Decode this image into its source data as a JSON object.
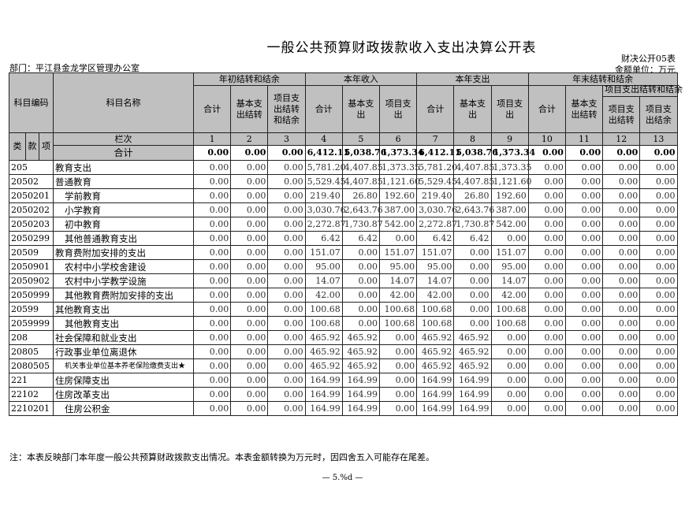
{
  "title": "一般公共预算财政拨款收入支出决算公开表",
  "form_no": "财决公开05表",
  "unit": "金额单位：万元",
  "department": "部门：平江县金龙学区管理办公室",
  "header": {
    "code": "科目编码",
    "name": "科目名称",
    "groups": [
      "年初结转和结余",
      "本年收入",
      "本年支出",
      "年末结转和结余"
    ],
    "sub": [
      "合计",
      "基本支出结转",
      "项目支出结转和结余",
      "合计",
      "基本支出",
      "项目支出",
      "合计",
      "基本支出",
      "项目支出",
      "合计",
      "基本支出结转",
      "项目支出结转和结余",
      "项目支出结转",
      "项目支出结余"
    ],
    "lei": "类",
    "kuan": "款",
    "xiang": "项",
    "lanci": "栏次",
    "col_nums": [
      "1",
      "2",
      "3",
      "4",
      "5",
      "6",
      "7",
      "8",
      "9",
      "10",
      "11",
      "12",
      "13"
    ],
    "total_label": "合计"
  },
  "totals": [
    "0.00",
    "0.00",
    "0.00",
    "6,412.11",
    "5,038.76",
    "1,373.34",
    "6,412.11",
    "5,038.76",
    "1,373.34",
    "0.00",
    "0.00",
    "0.00",
    "0.00"
  ],
  "rows": [
    {
      "code": "205",
      "name": "教育支出",
      "level": 1,
      "values": [
        "0.00",
        "0.00",
        "0.00",
        "5,781.20",
        "4,407.85",
        "1,373.35",
        "5,781.20",
        "4,407.85",
        "1,373.35",
        "0.00",
        "0.00",
        "0.00",
        "0.00"
      ]
    },
    {
      "code": "20502",
      "name": "普通教育",
      "level": 2,
      "values": [
        "0.00",
        "0.00",
        "0.00",
        "5,529.45",
        "4,407.85",
        "1,121.60",
        "5,529.45",
        "4,407.85",
        "1,121.60",
        "0.00",
        "0.00",
        "0.00",
        "0.00"
      ]
    },
    {
      "code": "2050201",
      "name": "学前教育",
      "level": 3,
      "values": [
        "0.00",
        "0.00",
        "0.00",
        "219.40",
        "26.80",
        "192.60",
        "219.40",
        "26.80",
        "192.60",
        "0.00",
        "0.00",
        "0.00",
        "0.00"
      ]
    },
    {
      "code": "2050202",
      "name": "小学教育",
      "level": 3,
      "values": [
        "0.00",
        "0.00",
        "0.00",
        "3,030.76",
        "2,643.76",
        "387.00",
        "3,030.76",
        "2,643.76",
        "387.00",
        "0.00",
        "0.00",
        "0.00",
        "0.00"
      ]
    },
    {
      "code": "2050203",
      "name": "初中教育",
      "level": 3,
      "values": [
        "0.00",
        "0.00",
        "0.00",
        "2,272.87",
        "1,730.87",
        "542.00",
        "2,272.87",
        "1,730.87",
        "542.00",
        "0.00",
        "0.00",
        "0.00",
        "0.00"
      ]
    },
    {
      "code": "2050299",
      "name": "其他普通教育支出",
      "level": 3,
      "values": [
        "0.00",
        "0.00",
        "0.00",
        "6.42",
        "6.42",
        "0.00",
        "6.42",
        "6.42",
        "0.00",
        "0.00",
        "0.00",
        "0.00",
        "0.00"
      ]
    },
    {
      "code": "20509",
      "name": "教育费附加安排的支出",
      "level": 2,
      "values": [
        "0.00",
        "0.00",
        "0.00",
        "151.07",
        "0.00",
        "151.07",
        "151.07",
        "0.00",
        "151.07",
        "0.00",
        "0.00",
        "0.00",
        "0.00"
      ]
    },
    {
      "code": "2050901",
      "name": "农村中小学校舍建设",
      "level": 3,
      "values": [
        "0.00",
        "0.00",
        "0.00",
        "95.00",
        "0.00",
        "95.00",
        "95.00",
        "0.00",
        "95.00",
        "0.00",
        "0.00",
        "0.00",
        "0.00"
      ]
    },
    {
      "code": "2050902",
      "name": "农村中小学教学设施",
      "level": 3,
      "values": [
        "0.00",
        "0.00",
        "0.00",
        "14.07",
        "0.00",
        "14.07",
        "14.07",
        "0.00",
        "14.07",
        "0.00",
        "0.00",
        "0.00",
        "0.00"
      ]
    },
    {
      "code": "2050999",
      "name": "其他教育费附加安排的支出",
      "level": 3,
      "values": [
        "0.00",
        "0.00",
        "0.00",
        "42.00",
        "0.00",
        "42.00",
        "42.00",
        "0.00",
        "42.00",
        "0.00",
        "0.00",
        "0.00",
        "0.00"
      ]
    },
    {
      "code": "20599",
      "name": "其他教育支出",
      "level": 2,
      "values": [
        "0.00",
        "0.00",
        "0.00",
        "100.68",
        "0.00",
        "100.68",
        "100.68",
        "0.00",
        "100.68",
        "0.00",
        "0.00",
        "0.00",
        "0.00"
      ]
    },
    {
      "code": "2059999",
      "name": "其他教育支出",
      "level": 3,
      "values": [
        "0.00",
        "0.00",
        "0.00",
        "100.68",
        "0.00",
        "100.68",
        "100.68",
        "0.00",
        "100.68",
        "0.00",
        "0.00",
        "0.00",
        "0.00"
      ]
    },
    {
      "code": "208",
      "name": "社会保障和就业支出",
      "level": 1,
      "values": [
        "0.00",
        "0.00",
        "0.00",
        "465.92",
        "465.92",
        "0.00",
        "465.92",
        "465.92",
        "0.00",
        "0.00",
        "0.00",
        "0.00",
        "0.00"
      ]
    },
    {
      "code": "20805",
      "name": "行政事业单位离退休",
      "level": 2,
      "values": [
        "0.00",
        "0.00",
        "0.00",
        "465.92",
        "465.92",
        "0.00",
        "465.92",
        "465.92",
        "0.00",
        "0.00",
        "0.00",
        "0.00",
        "0.00"
      ]
    },
    {
      "code": "2080505",
      "name": "机关事业单位基本养老保险缴费支出★",
      "level": 3,
      "small": true,
      "values": [
        "0.00",
        "0.00",
        "0.00",
        "465.92",
        "465.92",
        "0.00",
        "465.92",
        "465.92",
        "0.00",
        "0.00",
        "0.00",
        "0.00",
        "0.00"
      ]
    },
    {
      "code": "221",
      "name": "住房保障支出",
      "level": 1,
      "values": [
        "0.00",
        "0.00",
        "0.00",
        "164.99",
        "164.99",
        "0.00",
        "164.99",
        "164.99",
        "0.00",
        "0.00",
        "0.00",
        "0.00",
        "0.00"
      ]
    },
    {
      "code": "22102",
      "name": "住房改革支出",
      "level": 2,
      "values": [
        "0.00",
        "0.00",
        "0.00",
        "164.99",
        "164.99",
        "0.00",
        "164.99",
        "164.99",
        "0.00",
        "0.00",
        "0.00",
        "0.00",
        "0.00"
      ]
    },
    {
      "code": "2210201",
      "name": "住房公积金",
      "level": 3,
      "values": [
        "0.00",
        "0.00",
        "0.00",
        "164.99",
        "164.99",
        "0.00",
        "164.99",
        "164.99",
        "0.00",
        "0.00",
        "0.00",
        "0.00",
        "0.00"
      ]
    }
  ],
  "note": "注：本表反映部门本年度一般公共预算财政拨款支出情况。本表金额转换为万元时，因四舍五入可能存在尾差。",
  "page": "— 5.%d —"
}
